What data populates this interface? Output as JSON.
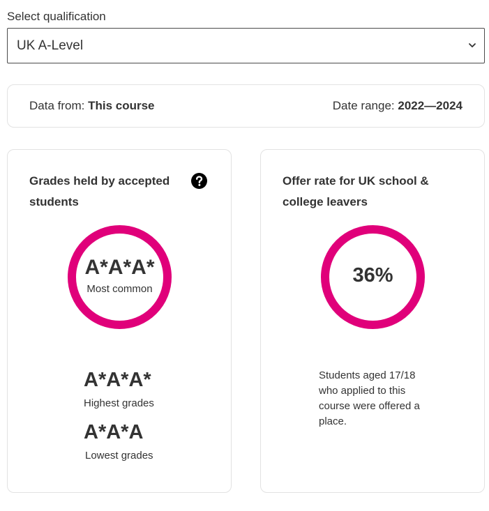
{
  "qualification": {
    "label": "Select qualification",
    "selected": "UK A-Level"
  },
  "info_bar": {
    "data_from_label": "Data from:",
    "data_from_value": "This course",
    "date_range_label": "Date range:",
    "date_range_value": "2022—2024"
  },
  "grades_card": {
    "title": "Grades held by accepted students",
    "most_common_value": "A*A*A*",
    "most_common_label": "Most common",
    "highest_value": "A*A*A*",
    "highest_label": "Highest grades",
    "lowest_value": "A*A*A",
    "lowest_label": "Lowest grades"
  },
  "offer_card": {
    "title": "Offer rate for UK school & college leavers",
    "rate": "36%",
    "description": "Students aged 17/18 who applied to this course were offered a place."
  },
  "colors": {
    "accent": "#e0007a",
    "text": "#333333",
    "border": "#e2e2e2"
  },
  "icons": {
    "select_chevron": "chevron-down-icon",
    "help": "help-icon"
  }
}
